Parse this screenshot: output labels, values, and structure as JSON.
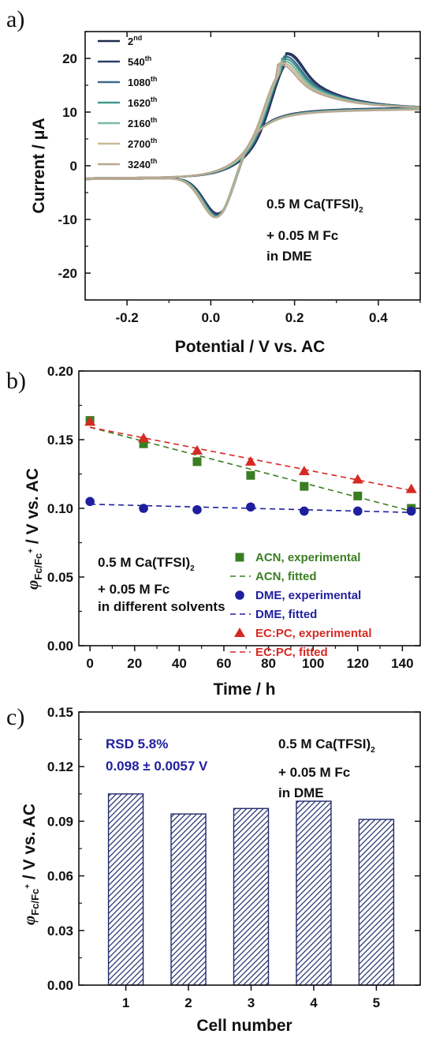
{
  "chart_data": [
    {
      "panel_label": "a)",
      "type": "line",
      "xlabel": "Potential / V vs. AC",
      "ylabel": "Current / μA",
      "xlim": [
        -0.3,
        0.5
      ],
      "ylim": [
        -25,
        25
      ],
      "xticks": [
        -0.2,
        0.0,
        0.2,
        0.4
      ],
      "xtick_labels": [
        "-0.2",
        "0.0",
        "0.2",
        "0.4"
      ],
      "yticks": [
        -20,
        -10,
        0,
        10,
        20
      ],
      "ytick_labels": [
        "-20",
        "-10",
        "0",
        "10",
        "20"
      ],
      "legend_position": "top-left",
      "annotation": [
        "0.5 M Ca(TFSI)",
        "2",
        "+ 0.05 M Fc",
        "in DME"
      ],
      "series": [
        {
          "name": "2",
          "sup": "nd",
          "color": "#1f2a4e",
          "peak_anodic": [
            0.178,
            21.0
          ],
          "peak_cathodic": [
            0.032,
            -13.2
          ]
        },
        {
          "name": "540",
          "sup": "th",
          "color": "#2b3f6b",
          "peak_anodic": [
            0.176,
            20.8
          ],
          "peak_cathodic": [
            0.031,
            -13.2
          ]
        },
        {
          "name": "1080",
          "sup": "th",
          "color": "#3e6a8c",
          "peak_anodic": [
            0.172,
            20.4
          ],
          "peak_cathodic": [
            0.03,
            -13.4
          ]
        },
        {
          "name": "1620",
          "sup": "th",
          "color": "#3f9a8c",
          "peak_anodic": [
            0.17,
            20.0
          ],
          "peak_cathodic": [
            0.029,
            -13.6
          ]
        },
        {
          "name": "2160",
          "sup": "th",
          "color": "#79b9a4",
          "peak_anodic": [
            0.167,
            19.6
          ],
          "peak_cathodic": [
            0.028,
            -13.6
          ]
        },
        {
          "name": "2700",
          "sup": "th",
          "color": "#c9b896",
          "peak_anodic": [
            0.164,
            19.2
          ],
          "peak_cathodic": [
            0.026,
            -13.4
          ]
        },
        {
          "name": "3240",
          "sup": "th",
          "color": "#b8a893",
          "peak_anodic": [
            0.16,
            18.9
          ],
          "peak_cathodic": [
            0.024,
            -13.2
          ]
        }
      ]
    },
    {
      "panel_label": "b)",
      "type": "scatter",
      "xlabel": "Time / h",
      "ylabel": "φFc/Fc+ / V vs. AC",
      "ylabel_parts": [
        "φ",
        "Fc/Fc",
        "+",
        " / V vs. AC"
      ],
      "xlim": [
        -5,
        148
      ],
      "ylim": [
        0,
        0.2
      ],
      "xticks": [
        0,
        20,
        40,
        60,
        80,
        100,
        120,
        140
      ],
      "xtick_labels": [
        "0",
        "20",
        "40",
        "60",
        "80",
        "100",
        "120",
        "140"
      ],
      "yticks": [
        0,
        0.05,
        0.1,
        0.15,
        0.2
      ],
      "ytick_labels": [
        "0.00",
        "0.05",
        "0.10",
        "0.15",
        "0.20"
      ],
      "legend_position": "bottom-right",
      "annotation": [
        "0.5 M Ca(TFSI)",
        "2",
        "+ 0.05 M Fc",
        "in different solvents"
      ],
      "x": [
        0,
        24,
        48,
        72,
        96,
        120,
        144
      ],
      "series": [
        {
          "name": "ACN, experimental",
          "fit_name": "ACN, fitted",
          "color": "#3b7d23",
          "marker": "square",
          "values": [
            0.164,
            0.147,
            0.134,
            0.124,
            0.116,
            0.109,
            0.1
          ],
          "fit": [
            0.159,
            0.098
          ]
        },
        {
          "name": "DME, experimental",
          "fit_name": "DME, fitted",
          "color": "#1f1f9e",
          "marker": "circle",
          "values": [
            0.105,
            0.1,
            0.099,
            0.101,
            0.098,
            0.098,
            0.098
          ],
          "fit": [
            0.103,
            0.097
          ]
        },
        {
          "name": "EC:PC, experimental",
          "fit_name": "EC:PC, fitted",
          "color": "#d42a23",
          "marker": "triangle",
          "values": [
            0.163,
            0.151,
            0.142,
            0.134,
            0.127,
            0.121,
            0.114
          ],
          "fit": [
            0.159,
            0.113
          ]
        }
      ]
    },
    {
      "panel_label": "c)",
      "type": "bar",
      "xlabel": "Cell number",
      "ylabel": "φFc/Fc+ / V vs. AC",
      "ylabel_parts": [
        "φ",
        "Fc/Fc",
        "+",
        " / V vs. AC"
      ],
      "ylim": [
        0,
        0.15
      ],
      "yticks": [
        0,
        0.03,
        0.06,
        0.09,
        0.12,
        0.15
      ],
      "ytick_labels": [
        "0.00",
        "0.03",
        "0.06",
        "0.09",
        "0.12",
        "0.15"
      ],
      "categories": [
        "1",
        "2",
        "3",
        "4",
        "5"
      ],
      "values": [
        0.105,
        0.094,
        0.097,
        0.101,
        0.091
      ],
      "bar_color": "#1f2a6b",
      "stats": [
        "RSD 5.8%",
        "0.098 ± 0.0057 V"
      ],
      "stats_color": "#1f1f9e",
      "annotation": [
        "0.5 M Ca(TFSI)",
        "2",
        "+ 0.05 M Fc",
        "in DME"
      ]
    }
  ]
}
